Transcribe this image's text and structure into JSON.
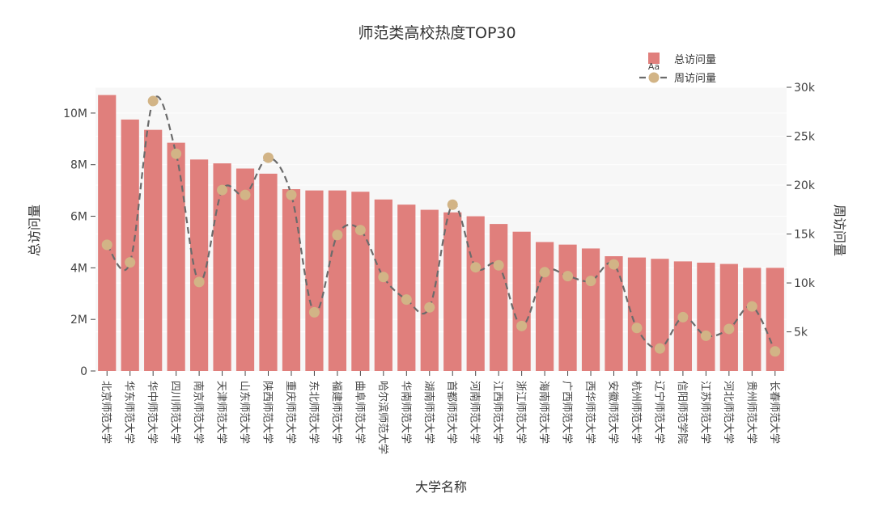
{
  "chart_data": {
    "type": "bar+line",
    "title": "师范类高校热度TOP30",
    "xlabel": "大学名称",
    "ylabel_left": "总访问量",
    "ylabel_right": "周访问量",
    "grid": true,
    "legend_position": "top-right",
    "legend_marker_text": "Aa",
    "colors": {
      "bar": "#e07f7c",
      "line": "#6b6b6b",
      "marker": "#d2b486",
      "plot_bg": "#f7f7f7"
    },
    "categories": [
      "北京师范大学",
      "华东师范大学",
      "华中师范大学",
      "四川师范大学",
      "南京师范大学",
      "天津师范大学",
      "山东师范大学",
      "陕西师范大学",
      "重庆师范大学",
      "东北师范大学",
      "福建师范大学",
      "曲阜师范大学",
      "哈尔滨师范大学",
      "华南师范大学",
      "湖南师范大学",
      "首都师范大学",
      "河南师范大学",
      "江西师范大学",
      "浙江师范大学",
      "海南师范大学",
      "广西师范大学",
      "西华师范大学",
      "安徽师范大学",
      "杭州师范大学",
      "辽宁师范大学",
      "信阳师范学院",
      "江苏师范大学",
      "河北师范大学",
      "贵州师范大学",
      "长春师范大学"
    ],
    "series": [
      {
        "name": "总访问量",
        "type": "bar",
        "axis": "left",
        "values": [
          10700000,
          9750000,
          9350000,
          8850000,
          8200000,
          8050000,
          7850000,
          7650000,
          7050000,
          7000000,
          7000000,
          6950000,
          6650000,
          6450000,
          6250000,
          6150000,
          6000000,
          5700000,
          5400000,
          5000000,
          4900000,
          4750000,
          4450000,
          4400000,
          4350000,
          4250000,
          4200000,
          4150000,
          4000000,
          4000000
        ]
      },
      {
        "name": "周访问量",
        "type": "line",
        "axis": "right",
        "values": [
          13900,
          12100,
          28600,
          23200,
          10100,
          19500,
          19000,
          22800,
          19000,
          7000,
          14900,
          15400,
          10600,
          8300,
          7500,
          18000,
          11600,
          11800,
          5600,
          11100,
          10700,
          10200,
          11900,
          5400,
          3300,
          6500,
          4600,
          5300,
          7600,
          3000
        ]
      }
    ],
    "y_left": {
      "range": [
        0,
        11000000
      ],
      "ticks": [
        0,
        2000000,
        4000000,
        6000000,
        8000000,
        10000000
      ],
      "tick_labels": [
        "0",
        "2M",
        "4M",
        "6M",
        "8M",
        "10M"
      ]
    },
    "y_right": {
      "range": [
        1000,
        30000
      ],
      "ticks": [
        5000,
        10000,
        15000,
        20000,
        25000,
        30000
      ],
      "tick_labels": [
        "5k",
        "10k",
        "15k",
        "20k",
        "25k",
        "30k"
      ]
    }
  }
}
